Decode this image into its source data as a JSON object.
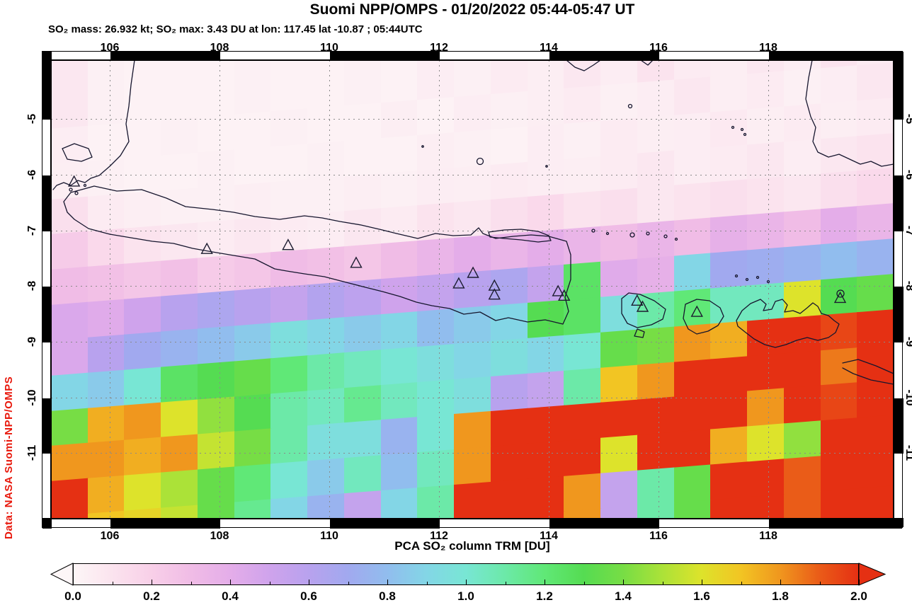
{
  "header": {
    "title": "Suomi NPP/OMPS - 01/20/2022 05:44-05:47 UT",
    "subtitle": "SO₂ mass: 26.932 kt; SO₂ max: 3.43 DU at lon: 117.45 lat -10.87 ; 05:44UTC"
  },
  "credit": "Data: NASA Suomi-NPP/OMPS",
  "axes": {
    "lon_tick_labels": [
      "106",
      "108",
      "110",
      "112",
      "114",
      "116",
      "118"
    ],
    "lat_tick_labels": [
      "-5",
      "-6",
      "-7",
      "-8",
      "-9",
      "-10",
      "-11"
    ]
  },
  "colorbar": {
    "title": "PCA SO₂ column TRM [DU]",
    "tick_labels": [
      "0.0",
      "0.2",
      "0.4",
      "0.6",
      "0.8",
      "1.0",
      "1.2",
      "1.4",
      "1.6",
      "1.8",
      "2.0"
    ],
    "min": 0.0,
    "max": 2.0,
    "stops": [
      [
        0.0,
        "#fdf6f7"
      ],
      [
        0.1,
        "#fbe3ee"
      ],
      [
        0.2,
        "#f8cfe8"
      ],
      [
        0.3,
        "#f0bce6"
      ],
      [
        0.4,
        "#e4ade9"
      ],
      [
        0.5,
        "#cfa3ec"
      ],
      [
        0.6,
        "#b8a2ee"
      ],
      [
        0.7,
        "#a1a9ef"
      ],
      [
        0.8,
        "#91bdee"
      ],
      [
        0.9,
        "#83d6e6"
      ],
      [
        1.0,
        "#78e6d4"
      ],
      [
        1.1,
        "#6ce9a8"
      ],
      [
        1.2,
        "#60e877"
      ],
      [
        1.3,
        "#55dc52"
      ],
      [
        1.4,
        "#77dd45"
      ],
      [
        1.5,
        "#abe238"
      ],
      [
        1.6,
        "#dde32b"
      ],
      [
        1.7,
        "#f2c523"
      ],
      [
        1.8,
        "#f0971e"
      ],
      [
        1.9,
        "#ea5c18"
      ],
      [
        2.0,
        "#e53013"
      ]
    ]
  },
  "chart_data": {
    "type": "heatmap",
    "title": "Suomi NPP/OMPS - 01/20/2022 05:44-05:47 UT",
    "quantity": "PCA SO₂ column TRM",
    "unit": "DU",
    "so2_mass_kt": 26.932,
    "so2_max_du": 3.43,
    "so2_max_location": {
      "lon": 117.45,
      "lat": -10.87
    },
    "obs_time": "05:44UTC",
    "lon_range": [
      104.9,
      120.3
    ],
    "lat_range": [
      -12.2,
      -3.95
    ],
    "lon_ticks": [
      106,
      108,
      110,
      112,
      114,
      116,
      118
    ],
    "lat_ticks": [
      -5,
      -6,
      -7,
      -8,
      -9,
      -10,
      -11
    ],
    "colorbar_range_du": [
      0.0,
      2.0
    ],
    "grid_note": "approximate SO2 column (DU) on 23 lon x 13 lat bins, north to south",
    "grid_values_du": [
      [
        0.08,
        0.03,
        0.02,
        0.02,
        0.02,
        0.03,
        0.02,
        0.02,
        0.03,
        0.02,
        0.05,
        0.03,
        0.06,
        0.04,
        0.08,
        0.05,
        0.1,
        0.06,
        0.04,
        0.08,
        0.05,
        0.1,
        0.06
      ],
      [
        0.05,
        0.02,
        0.02,
        0.03,
        0.02,
        0.02,
        0.03,
        0.02,
        0.02,
        0.04,
        0.02,
        0.05,
        0.03,
        0.04,
        0.06,
        0.03,
        0.05,
        0.08,
        0.04,
        0.06,
        0.03,
        0.05,
        0.08
      ],
      [
        0.04,
        0.03,
        0.02,
        0.02,
        0.03,
        0.02,
        0.02,
        0.03,
        0.02,
        0.02,
        0.04,
        0.03,
        0.02,
        0.05,
        0.03,
        0.06,
        0.04,
        0.05,
        0.07,
        0.04,
        0.06,
        0.04,
        0.06
      ],
      [
        0.12,
        0.06,
        0.04,
        0.03,
        0.03,
        0.04,
        0.03,
        0.03,
        0.04,
        0.03,
        0.05,
        0.04,
        0.06,
        0.05,
        0.04,
        0.06,
        0.08,
        0.05,
        0.06,
        0.08,
        0.05,
        0.08,
        0.1
      ],
      [
        0.22,
        0.15,
        0.1,
        0.08,
        0.06,
        0.08,
        0.06,
        0.05,
        0.08,
        0.06,
        0.1,
        0.08,
        0.12,
        0.15,
        0.1,
        0.12,
        0.08,
        0.1,
        0.12,
        0.1,
        0.08,
        0.12,
        0.15
      ],
      [
        0.3,
        0.28,
        0.25,
        0.28,
        0.22,
        0.25,
        0.3,
        0.28,
        0.25,
        0.3,
        0.35,
        0.4,
        0.35,
        0.4,
        0.35,
        0.3,
        0.35,
        0.3,
        0.38,
        0.35,
        0.3,
        0.4,
        0.35
      ],
      [
        0.45,
        0.42,
        0.5,
        0.6,
        0.65,
        0.6,
        0.55,
        0.62,
        0.58,
        0.5,
        0.55,
        0.6,
        0.65,
        0.55,
        1.25,
        0.42,
        0.38,
        0.9,
        0.7,
        0.72,
        0.75,
        0.8,
        0.75
      ],
      [
        0.45,
        0.6,
        0.7,
        0.75,
        0.8,
        0.85,
        0.95,
        0.9,
        0.85,
        0.9,
        0.8,
        0.85,
        0.9,
        1.3,
        1.25,
        0.95,
        1.1,
        1.2,
        1.05,
        1.05,
        1.6,
        1.3,
        1.35
      ],
      [
        0.9,
        0.85,
        1.0,
        1.25,
        1.3,
        1.35,
        1.2,
        1.1,
        1.05,
        1.0,
        0.95,
        0.9,
        0.95,
        0.9,
        1.0,
        1.35,
        1.4,
        1.8,
        1.75,
        2.0,
        2.0,
        1.95,
        2.0
      ],
      [
        1.4,
        1.75,
        1.8,
        1.6,
        1.45,
        1.3,
        1.1,
        1.05,
        1.15,
        1.05,
        1.0,
        0.95,
        0.6,
        0.55,
        1.1,
        1.7,
        1.8,
        2.0,
        2.0,
        2.0,
        2.0,
        1.85,
        2.0
      ],
      [
        1.8,
        1.8,
        1.75,
        1.8,
        1.55,
        1.4,
        1.1,
        0.95,
        0.95,
        0.75,
        1.0,
        1.8,
        2.0,
        2.0,
        2.0,
        2.0,
        2.0,
        2.0,
        2.0,
        1.8,
        2.0,
        1.95,
        2.0
      ],
      [
        2.0,
        1.75,
        1.6,
        1.5,
        1.35,
        1.2,
        1.0,
        0.85,
        1.05,
        0.8,
        1.05,
        1.8,
        2.0,
        2.0,
        2.0,
        1.6,
        2.0,
        2.0,
        1.75,
        1.6,
        1.45,
        2.0,
        2.0
      ],
      [
        2.0,
        1.7,
        1.65,
        1.55,
        1.35,
        1.15,
        0.9,
        0.75,
        0.55,
        0.9,
        1.1,
        2.0,
        2.0,
        2.0,
        1.8,
        0.55,
        1.1,
        1.35,
        2.0,
        2.0,
        1.9,
        2.0,
        2.0
      ]
    ],
    "volcano_markers_lonlat": [
      [
        105.35,
        -6.13
      ],
      [
        107.77,
        -7.34
      ],
      [
        109.25,
        -7.27
      ],
      [
        110.49,
        -7.59
      ],
      [
        112.36,
        -7.96
      ],
      [
        112.62,
        -7.77
      ],
      [
        113.01,
        -8.0
      ],
      [
        113.01,
        -8.16
      ],
      [
        114.17,
        -8.1
      ],
      [
        114.28,
        -8.18
      ],
      [
        115.61,
        -8.27
      ],
      [
        115.71,
        -8.38
      ],
      [
        116.7,
        -8.47
      ],
      [
        119.31,
        -8.22
      ]
    ]
  }
}
